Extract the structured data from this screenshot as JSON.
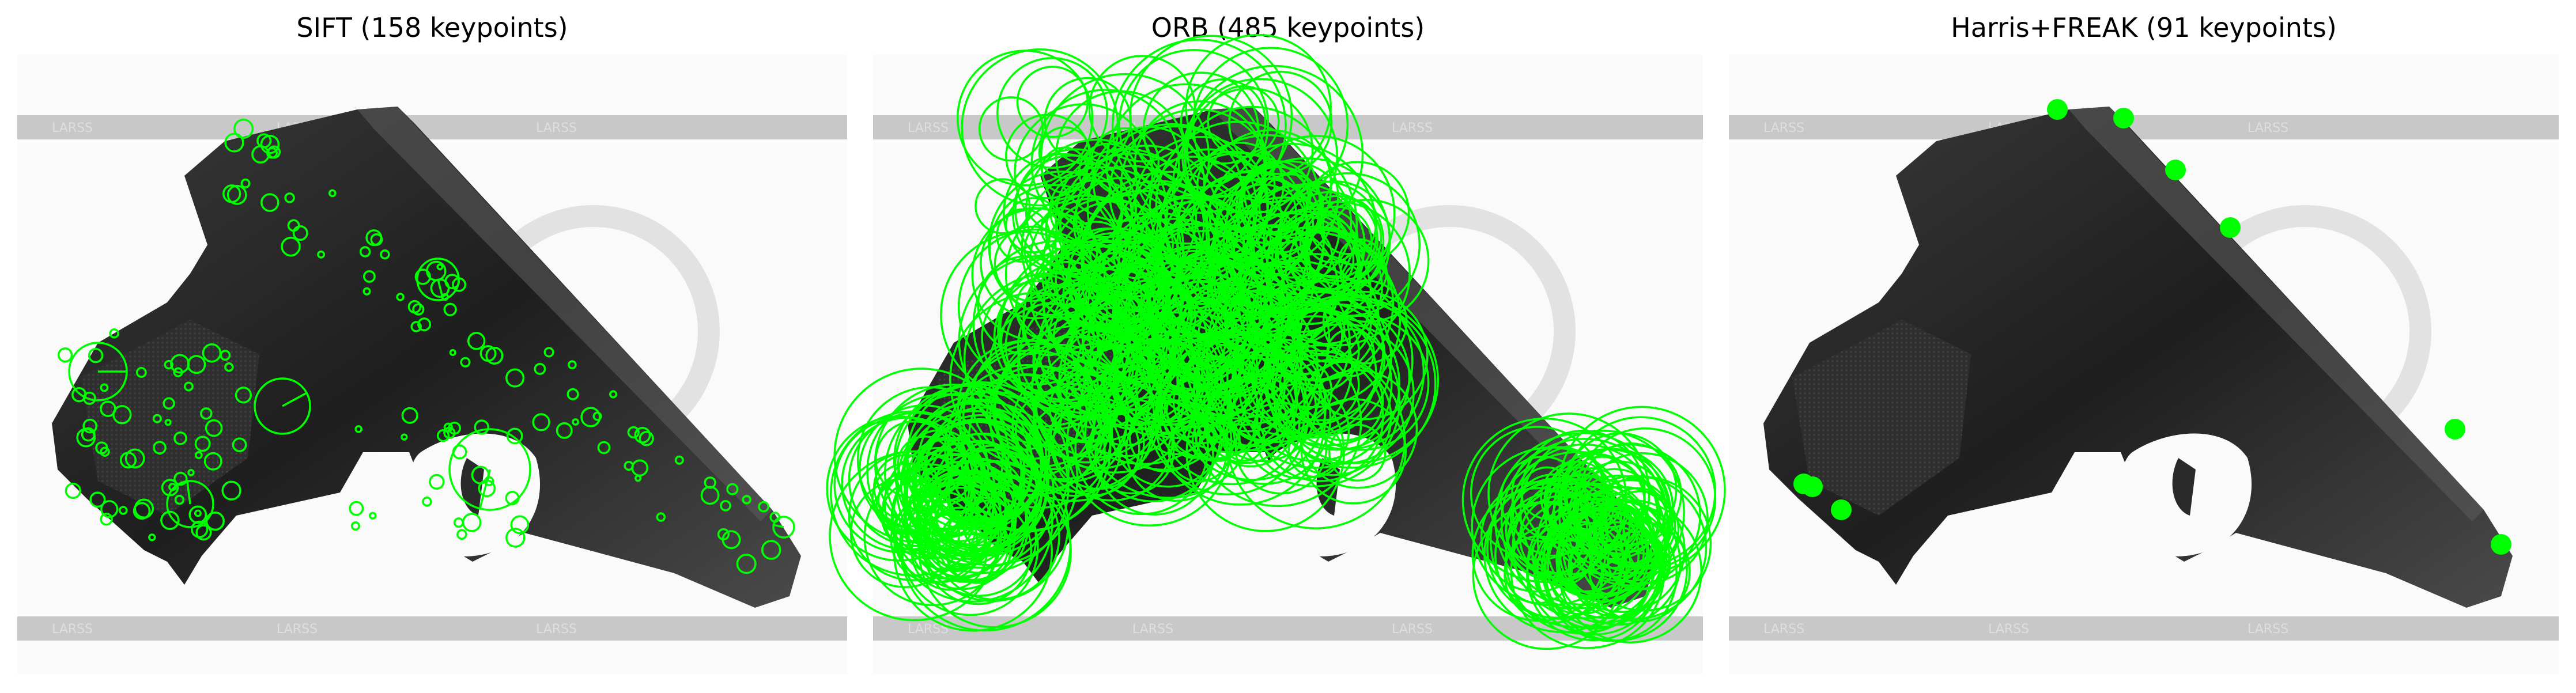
{
  "figure": {
    "panels": [
      {
        "title": "SIFT (158 keypoints)",
        "method": "SIFT",
        "keypoint_count": 158,
        "marker_style": "scaled-circle-with-orientation"
      },
      {
        "title": "ORB (485 keypoints)",
        "method": "ORB",
        "keypoint_count": 485,
        "marker_style": "large-circle"
      },
      {
        "title": "Harris+FREAK (91 keypoints)",
        "method": "Harris+FREAK",
        "keypoint_count": 91,
        "marker_style": "filled-dot"
      }
    ],
    "subject": "x-ray-handgun-image",
    "colors": {
      "keypoint": "#00ff00",
      "background": "#ffffff",
      "watermark_band": "#c8c8c8"
    }
  }
}
